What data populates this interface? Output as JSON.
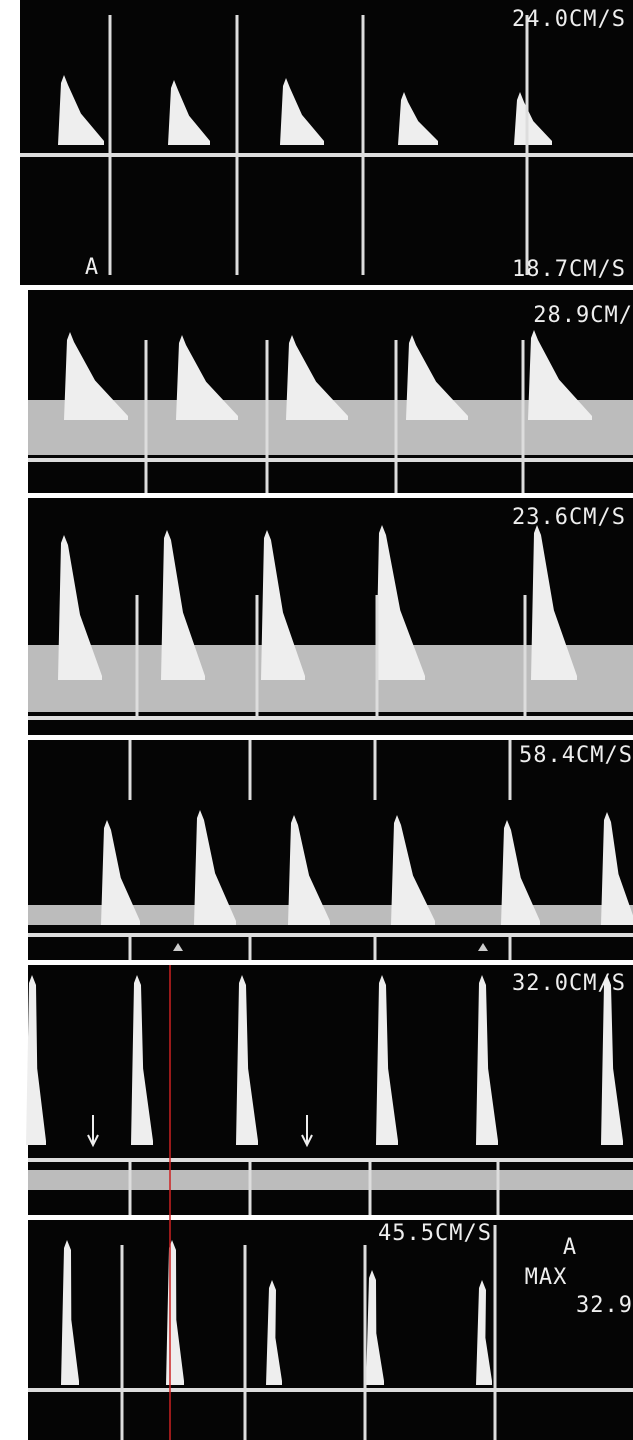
{
  "panels": [
    {
      "velocity_top": "24.0CM/S",
      "label": "A",
      "velocity_bottom": "18.7CM/S"
    },
    {
      "velocity_top": "28.9CM/"
    },
    {
      "velocity_top": "23.6CM/S"
    },
    {
      "velocity_top": "58.4CM/S"
    },
    {
      "velocity_top": "32.0CM/S"
    },
    {
      "velocity_top": "45.5CM/S",
      "side_label": "A",
      "max_label": "MAX",
      "max_value": "32.9"
    }
  ]
}
